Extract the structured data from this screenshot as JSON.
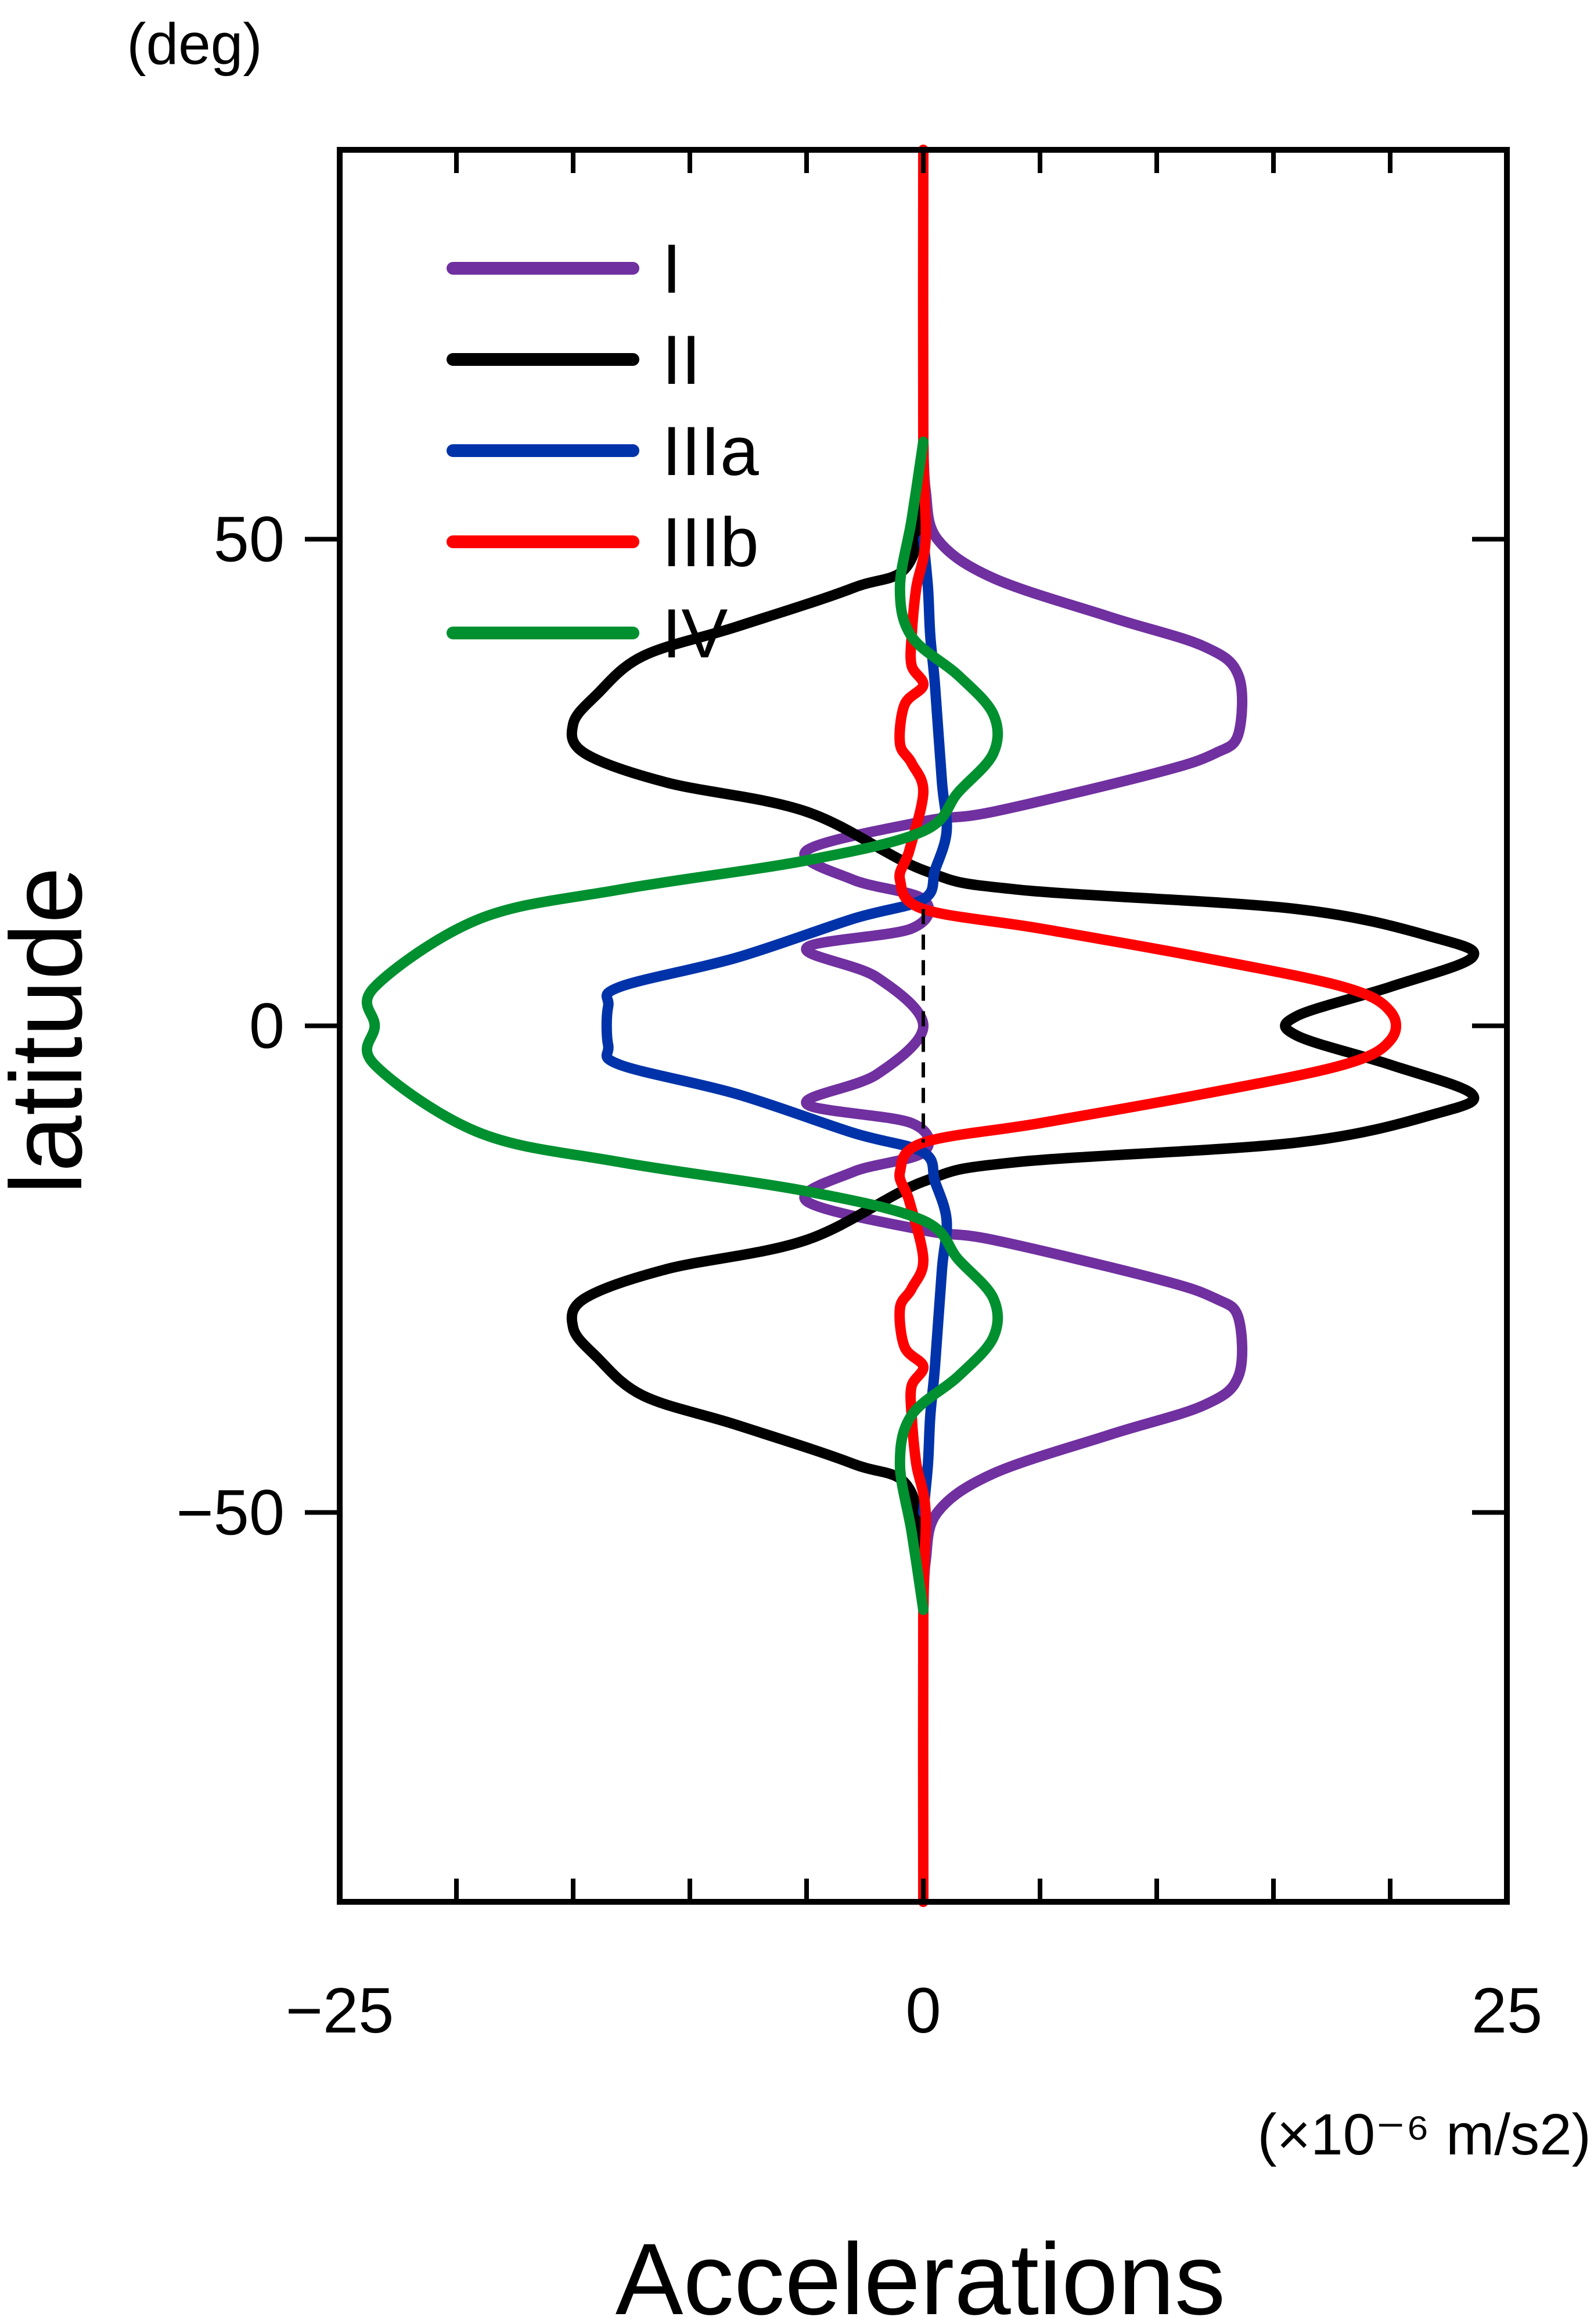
{
  "chart_data": {
    "type": "line",
    "orientation": "horizontal",
    "xlabel": "Accelerations",
    "xunit": "(×10⁻⁶ m/s2)",
    "ylabel": "latitude",
    "yunit": "(deg)",
    "xlim": [
      -25,
      25
    ],
    "ylim": [
      -90,
      90
    ],
    "x_tick_labels": [
      {
        "value": -25,
        "label": "−25"
      },
      {
        "value": 0,
        "label": "0"
      },
      {
        "value": 25,
        "label": "25"
      }
    ],
    "x_minor_ticks": [
      -20,
      -15,
      -10,
      -5,
      5,
      10,
      15,
      20
    ],
    "y_tick_labels": [
      {
        "value": 50,
        "label": "50"
      },
      {
        "value": 0,
        "label": "0"
      },
      {
        "value": -50,
        "label": "−50"
      }
    ],
    "grid": false,
    "legend_position": "top-left",
    "reference_line": {
      "x": 0,
      "lat_range": [
        -12,
        12
      ],
      "style": "dashed"
    },
    "series": [
      {
        "name": "I",
        "color": "#7030a0",
        "points": [
          [
            0,
            -60
          ],
          [
            0.1,
            -55
          ],
          [
            0.6,
            -50
          ],
          [
            3,
            -46
          ],
          [
            8,
            -42
          ],
          [
            12,
            -39
          ],
          [
            13.5,
            -36
          ],
          [
            13.5,
            -30
          ],
          [
            12.5,
            -28
          ],
          [
            10,
            -26
          ],
          [
            3,
            -22
          ],
          [
            0,
            -21
          ],
          [
            -5,
            -18
          ],
          [
            -3,
            -15
          ],
          [
            0,
            -13
          ],
          [
            -0.5,
            -10
          ],
          [
            -5,
            -8
          ],
          [
            -2,
            -5
          ],
          [
            0,
            0
          ],
          [
            -2,
            5
          ],
          [
            -5,
            8
          ],
          [
            -0.5,
            10
          ],
          [
            0,
            13
          ],
          [
            -3,
            15
          ],
          [
            -5,
            18
          ],
          [
            0,
            21
          ],
          [
            3,
            22
          ],
          [
            10,
            26
          ],
          [
            12.5,
            28
          ],
          [
            13.5,
            30
          ],
          [
            13.5,
            36
          ],
          [
            12,
            39
          ],
          [
            8,
            42
          ],
          [
            3,
            46
          ],
          [
            0.6,
            50
          ],
          [
            0.1,
            55
          ],
          [
            0,
            60
          ]
        ]
      },
      {
        "name": "II",
        "color": "#000000",
        "points": [
          [
            0,
            -60
          ],
          [
            -0.5,
            -48
          ],
          [
            -3,
            -45
          ],
          [
            -8,
            -41
          ],
          [
            -12,
            -38
          ],
          [
            -14,
            -34
          ],
          [
            -15,
            -31
          ],
          [
            -14.5,
            -28
          ],
          [
            -11,
            -25
          ],
          [
            -5,
            -22
          ],
          [
            0,
            -16
          ],
          [
            4,
            -14
          ],
          [
            16,
            -12
          ],
          [
            22,
            -9
          ],
          [
            23.5,
            -7
          ],
          [
            20,
            -4
          ],
          [
            16,
            -1
          ],
          [
            16,
            1
          ],
          [
            20,
            4
          ],
          [
            23.5,
            7
          ],
          [
            22,
            9
          ],
          [
            16,
            12
          ],
          [
            4,
            14
          ],
          [
            0,
            16
          ],
          [
            -5,
            22
          ],
          [
            -11,
            25
          ],
          [
            -14.5,
            28
          ],
          [
            -15,
            31
          ],
          [
            -14,
            34
          ],
          [
            -12,
            38
          ],
          [
            -8,
            41
          ],
          [
            -3,
            45
          ],
          [
            -0.5,
            48
          ],
          [
            0,
            60
          ]
        ]
      },
      {
        "name": "IIIa",
        "color": "#0033aa",
        "points": [
          [
            0,
            -50
          ],
          [
            0.2,
            -45
          ],
          [
            0.3,
            -40
          ],
          [
            0.5,
            -35
          ],
          [
            0.8,
            -25
          ],
          [
            1,
            -20
          ],
          [
            0.5,
            -16
          ],
          [
            0,
            -13
          ],
          [
            -3,
            -11
          ],
          [
            -8,
            -7
          ],
          [
            -13,
            -4
          ],
          [
            -13.5,
            -2
          ],
          [
            -13.5,
            2
          ],
          [
            -13,
            4
          ],
          [
            -8,
            7
          ],
          [
            -3,
            11
          ],
          [
            0,
            13
          ],
          [
            0.5,
            16
          ],
          [
            1,
            20
          ],
          [
            0.8,
            25
          ],
          [
            0.5,
            35
          ],
          [
            0.3,
            40
          ],
          [
            0.2,
            45
          ],
          [
            0,
            50
          ]
        ]
      },
      {
        "name": "IIIb",
        "color": "#ff0000",
        "points": [
          [
            0,
            -90
          ],
          [
            0,
            -60
          ],
          [
            0.1,
            -50
          ],
          [
            -0.3,
            -45
          ],
          [
            -0.5,
            -40
          ],
          [
            -0.5,
            -37
          ],
          [
            0,
            -35
          ],
          [
            -0.8,
            -33
          ],
          [
            -1,
            -29
          ],
          [
            -0.5,
            -27
          ],
          [
            0,
            -24
          ],
          [
            -0.6,
            -18
          ],
          [
            -1,
            -15
          ],
          [
            0,
            -12
          ],
          [
            5,
            -10
          ],
          [
            12,
            -7
          ],
          [
            18,
            -4
          ],
          [
            20,
            -1.5
          ],
          [
            20,
            1.5
          ],
          [
            18,
            4
          ],
          [
            12,
            7
          ],
          [
            5,
            10
          ],
          [
            0,
            12
          ],
          [
            -1,
            15
          ],
          [
            -0.6,
            18
          ],
          [
            0,
            24
          ],
          [
            -0.5,
            27
          ],
          [
            -1,
            29
          ],
          [
            -0.8,
            33
          ],
          [
            0,
            35
          ],
          [
            -0.5,
            37
          ],
          [
            -0.5,
            40
          ],
          [
            -0.3,
            45
          ],
          [
            0.1,
            50
          ],
          [
            0,
            60
          ],
          [
            0,
            90
          ]
        ]
      },
      {
        "name": "IV",
        "color": "#009030",
        "points": [
          [
            0,
            -60
          ],
          [
            -0.5,
            -52
          ],
          [
            -1,
            -45
          ],
          [
            -0.5,
            -40
          ],
          [
            1.5,
            -36
          ],
          [
            3,
            -32
          ],
          [
            3,
            -28
          ],
          [
            1.5,
            -24
          ],
          [
            0,
            -20
          ],
          [
            -5,
            -17
          ],
          [
            -13,
            -14
          ],
          [
            -19,
            -11
          ],
          [
            -23.5,
            -4
          ],
          [
            -23.5,
            0
          ],
          [
            -23.5,
            4
          ],
          [
            -19,
            11
          ],
          [
            -13,
            14
          ],
          [
            -5,
            17
          ],
          [
            0,
            20
          ],
          [
            1.5,
            24
          ],
          [
            3,
            28
          ],
          [
            3,
            32
          ],
          [
            1.5,
            36
          ],
          [
            -0.5,
            40
          ],
          [
            -1,
            45
          ],
          [
            -0.5,
            52
          ],
          [
            0,
            60
          ]
        ]
      }
    ]
  }
}
